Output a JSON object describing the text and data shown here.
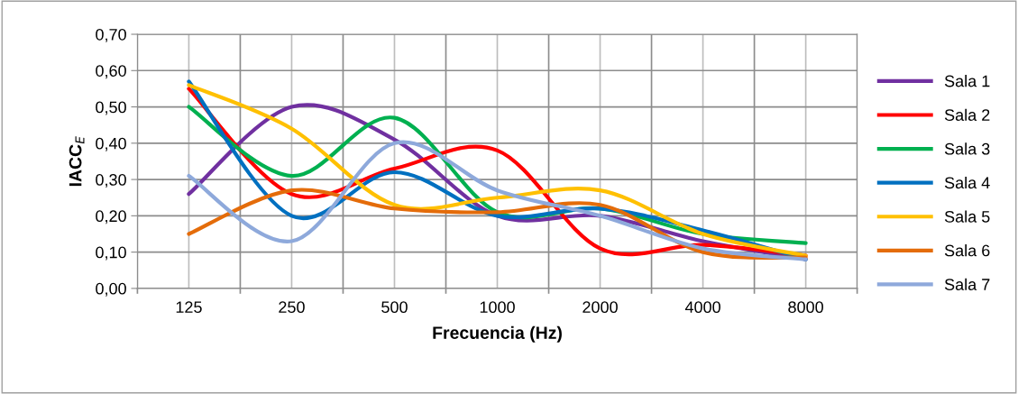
{
  "chart_data": {
    "type": "line",
    "xlabel": "Frecuencia (Hz)",
    "ylabel": "IACC$_{E}$",
    "categories": [
      "125",
      "250",
      "500",
      "1000",
      "2000",
      "4000",
      "8000"
    ],
    "ylim": [
      0,
      0.7
    ],
    "yticks": [
      {
        "value": 0,
        "label": "0,00"
      },
      {
        "value": 0.1,
        "label": "0,10"
      },
      {
        "value": 0.2,
        "label": "0,20"
      },
      {
        "value": 0.3,
        "label": "0,30"
      },
      {
        "value": 0.4,
        "label": "0,40"
      },
      {
        "value": 0.5,
        "label": "0,50"
      },
      {
        "value": 0.6,
        "label": "0,60"
      },
      {
        "value": 0.7,
        "label": "0,70"
      }
    ],
    "grid": true,
    "legend": "right",
    "marker": "none",
    "line_style": "solid",
    "series": [
      {
        "name": "Sala 1",
        "color": "#7030a0",
        "values": [
          0.26,
          0.5,
          0.41,
          0.2,
          0.2,
          0.13,
          0.08
        ]
      },
      {
        "name": "Sala 2",
        "color": "#ff0000",
        "values": [
          0.55,
          0.26,
          0.33,
          0.38,
          0.11,
          0.12,
          0.09
        ]
      },
      {
        "name": "Sala 3",
        "color": "#00b050",
        "values": [
          0.5,
          0.31,
          0.47,
          0.21,
          0.22,
          0.15,
          0.125
        ]
      },
      {
        "name": "Sala 4",
        "color": "#0070c0",
        "values": [
          0.57,
          0.2,
          0.32,
          0.2,
          0.22,
          0.16,
          0.08
        ]
      },
      {
        "name": "Sala 5",
        "color": "#ffc000",
        "values": [
          0.56,
          0.44,
          0.23,
          0.25,
          0.27,
          0.15,
          0.09
        ]
      },
      {
        "name": "Sala 6",
        "color": "#e46c0a",
        "values": [
          0.15,
          0.27,
          0.22,
          0.21,
          0.23,
          0.1,
          0.085
        ]
      },
      {
        "name": "Sala 7",
        "color": "#8ea9db",
        "values": [
          0.31,
          0.13,
          0.4,
          0.27,
          0.2,
          0.11,
          0.08
        ]
      }
    ]
  }
}
